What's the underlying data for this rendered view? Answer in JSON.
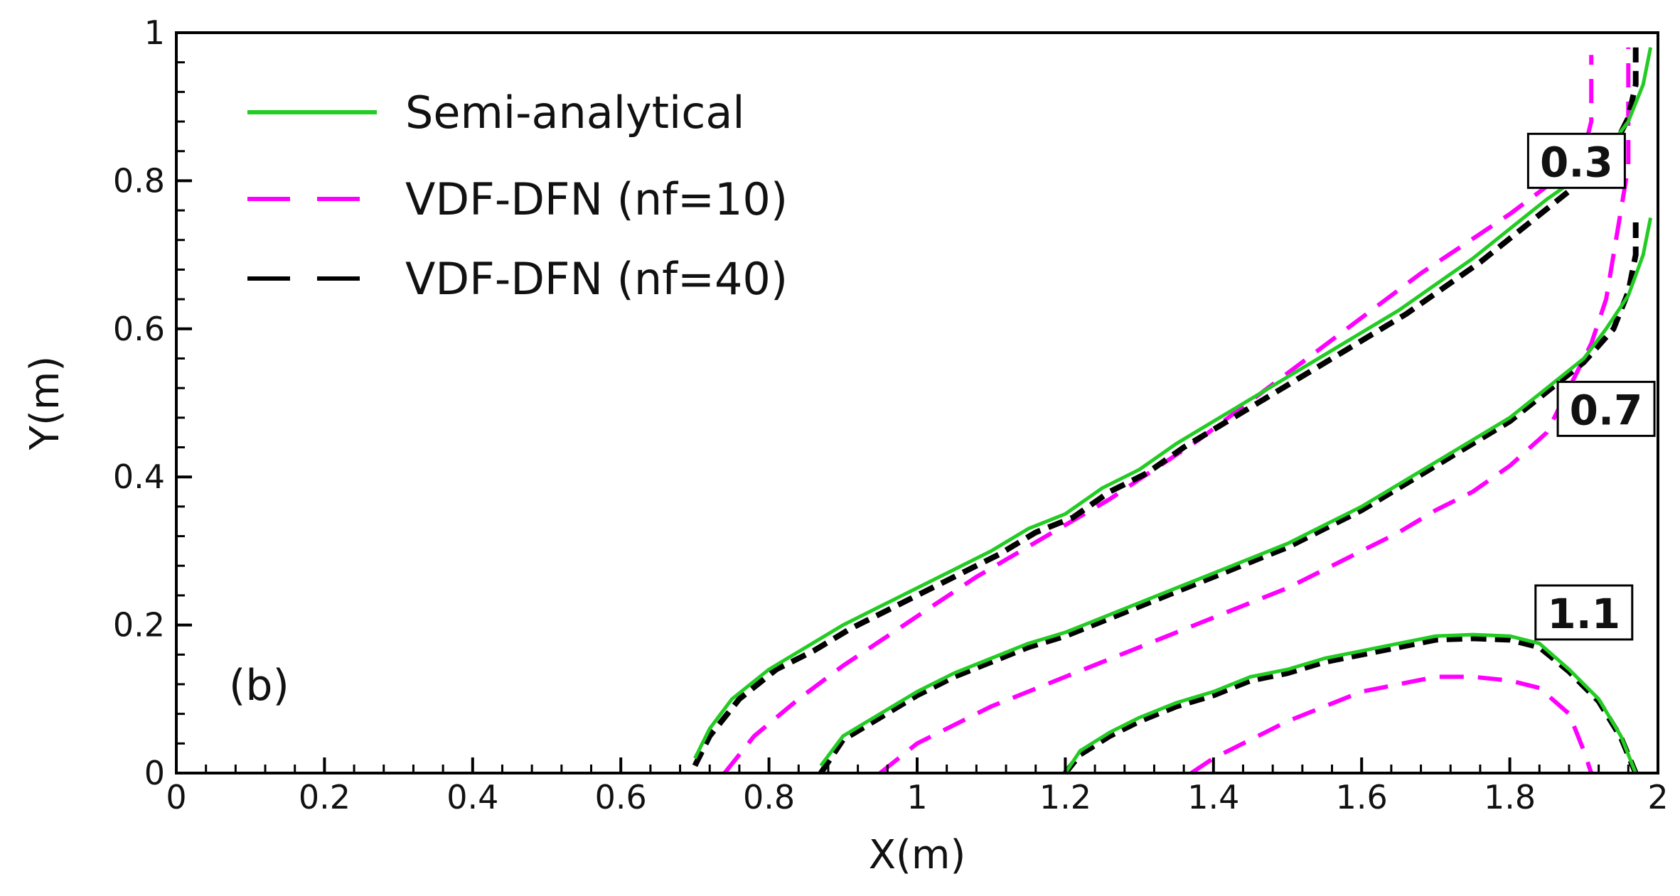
{
  "chart_data": {
    "type": "line",
    "title": "",
    "panel_label": "(b)",
    "xlabel": "X(m)",
    "ylabel": "Y(m)",
    "xlim": [
      0,
      2
    ],
    "ylim": [
      0,
      1
    ],
    "x_ticks": [
      "0",
      "0.2",
      "0.4",
      "0.6",
      "0.8",
      "1",
      "1.2",
      "1.4",
      "1.6",
      "1.8",
      "2"
    ],
    "y_ticks": [
      "0",
      "0.2",
      "0.4",
      "0.6",
      "0.8",
      "1"
    ],
    "grid": false,
    "legend_position": "top-left",
    "legend": [
      {
        "label": "Semi-analytical",
        "color": "#22cc22",
        "dash": "solid"
      },
      {
        "label": "VDF-DFN (nf=10)",
        "color": "#ff00ff",
        "dash": "dashed"
      },
      {
        "label": "VDF-DFN (nf=40)",
        "color": "#000000",
        "dash": "dashed"
      }
    ],
    "curve_labels": [
      {
        "text": "0.3",
        "x": 1.89,
        "y": 0.825
      },
      {
        "text": "0.7",
        "x": 1.93,
        "y": 0.49
      },
      {
        "text": "1.1",
        "x": 1.9,
        "y": 0.215
      }
    ],
    "series": [
      {
        "method": "Semi-analytical",
        "time": "0.3",
        "points": [
          [
            0.7,
            0.02
          ],
          [
            0.72,
            0.06
          ],
          [
            0.75,
            0.1
          ],
          [
            0.8,
            0.14
          ],
          [
            0.85,
            0.17
          ],
          [
            0.9,
            0.2
          ],
          [
            0.95,
            0.225
          ],
          [
            1.0,
            0.25
          ],
          [
            1.05,
            0.275
          ],
          [
            1.1,
            0.3
          ],
          [
            1.15,
            0.33
          ],
          [
            1.2,
            0.35
          ],
          [
            1.25,
            0.385
          ],
          [
            1.3,
            0.41
          ],
          [
            1.35,
            0.445
          ],
          [
            1.4,
            0.475
          ],
          [
            1.45,
            0.505
          ],
          [
            1.5,
            0.535
          ],
          [
            1.55,
            0.565
          ],
          [
            1.6,
            0.595
          ],
          [
            1.65,
            0.625
          ],
          [
            1.7,
            0.66
          ],
          [
            1.75,
            0.695
          ],
          [
            1.8,
            0.735
          ],
          [
            1.85,
            0.775
          ],
          [
            1.9,
            0.81
          ],
          [
            1.93,
            0.84
          ],
          [
            1.96,
            0.88
          ],
          [
            1.98,
            0.93
          ],
          [
            1.99,
            0.98
          ]
        ]
      },
      {
        "method": "VDF-DFN (nf=40)",
        "time": "0.3",
        "points": [
          [
            0.7,
            0.01
          ],
          [
            0.72,
            0.05
          ],
          [
            0.76,
            0.1
          ],
          [
            0.81,
            0.14
          ],
          [
            0.86,
            0.165
          ],
          [
            0.91,
            0.195
          ],
          [
            0.96,
            0.22
          ],
          [
            1.01,
            0.245
          ],
          [
            1.06,
            0.27
          ],
          [
            1.11,
            0.295
          ],
          [
            1.16,
            0.325
          ],
          [
            1.21,
            0.345
          ],
          [
            1.26,
            0.38
          ],
          [
            1.31,
            0.405
          ],
          [
            1.36,
            0.44
          ],
          [
            1.41,
            0.47
          ],
          [
            1.46,
            0.5
          ],
          [
            1.51,
            0.53
          ],
          [
            1.56,
            0.56
          ],
          [
            1.61,
            0.59
          ],
          [
            1.66,
            0.62
          ],
          [
            1.71,
            0.655
          ],
          [
            1.76,
            0.69
          ],
          [
            1.81,
            0.73
          ],
          [
            1.86,
            0.77
          ],
          [
            1.91,
            0.81
          ],
          [
            1.94,
            0.845
          ],
          [
            1.96,
            0.885
          ],
          [
            1.97,
            0.93
          ],
          [
            1.97,
            0.98
          ]
        ]
      },
      {
        "method": "VDF-DFN (nf=10)",
        "time": "0.3",
        "points": [
          [
            0.74,
            0.0
          ],
          [
            0.78,
            0.05
          ],
          [
            0.84,
            0.1
          ],
          [
            0.9,
            0.145
          ],
          [
            0.96,
            0.185
          ],
          [
            1.02,
            0.225
          ],
          [
            1.08,
            0.265
          ],
          [
            1.14,
            0.3
          ],
          [
            1.2,
            0.335
          ],
          [
            1.26,
            0.37
          ],
          [
            1.32,
            0.41
          ],
          [
            1.38,
            0.45
          ],
          [
            1.44,
            0.495
          ],
          [
            1.5,
            0.54
          ],
          [
            1.56,
            0.585
          ],
          [
            1.62,
            0.63
          ],
          [
            1.68,
            0.675
          ],
          [
            1.74,
            0.715
          ],
          [
            1.8,
            0.755
          ],
          [
            1.86,
            0.8
          ],
          [
            1.9,
            0.84
          ],
          [
            1.91,
            0.88
          ],
          [
            1.91,
            0.93
          ],
          [
            1.91,
            0.97
          ]
        ]
      },
      {
        "method": "Semi-analytical",
        "time": "0.7",
        "points": [
          [
            0.87,
            0.01
          ],
          [
            0.9,
            0.05
          ],
          [
            0.95,
            0.08
          ],
          [
            1.0,
            0.11
          ],
          [
            1.05,
            0.135
          ],
          [
            1.1,
            0.155
          ],
          [
            1.15,
            0.175
          ],
          [
            1.2,
            0.19
          ],
          [
            1.25,
            0.21
          ],
          [
            1.3,
            0.23
          ],
          [
            1.35,
            0.25
          ],
          [
            1.4,
            0.27
          ],
          [
            1.45,
            0.29
          ],
          [
            1.5,
            0.31
          ],
          [
            1.55,
            0.335
          ],
          [
            1.6,
            0.36
          ],
          [
            1.65,
            0.39
          ],
          [
            1.7,
            0.42
          ],
          [
            1.75,
            0.45
          ],
          [
            1.8,
            0.48
          ],
          [
            1.85,
            0.52
          ],
          [
            1.9,
            0.56
          ],
          [
            1.93,
            0.6
          ],
          [
            1.96,
            0.645
          ],
          [
            1.98,
            0.7
          ],
          [
            1.99,
            0.75
          ]
        ]
      },
      {
        "method": "VDF-DFN (nf=40)",
        "time": "0.7",
        "points": [
          [
            0.87,
            0.0
          ],
          [
            0.9,
            0.045
          ],
          [
            0.95,
            0.075
          ],
          [
            1.0,
            0.105
          ],
          [
            1.05,
            0.13
          ],
          [
            1.1,
            0.15
          ],
          [
            1.15,
            0.17
          ],
          [
            1.2,
            0.185
          ],
          [
            1.25,
            0.205
          ],
          [
            1.3,
            0.225
          ],
          [
            1.35,
            0.245
          ],
          [
            1.4,
            0.265
          ],
          [
            1.45,
            0.285
          ],
          [
            1.5,
            0.305
          ],
          [
            1.55,
            0.33
          ],
          [
            1.6,
            0.355
          ],
          [
            1.65,
            0.385
          ],
          [
            1.7,
            0.415
          ],
          [
            1.75,
            0.445
          ],
          [
            1.8,
            0.475
          ],
          [
            1.85,
            0.515
          ],
          [
            1.9,
            0.555
          ],
          [
            1.94,
            0.6
          ],
          [
            1.96,
            0.65
          ],
          [
            1.97,
            0.7
          ],
          [
            1.97,
            0.75
          ]
        ]
      },
      {
        "method": "VDF-DFN (nf=10)",
        "time": "0.7",
        "points": [
          [
            0.95,
            0.0
          ],
          [
            1.0,
            0.04
          ],
          [
            1.05,
            0.065
          ],
          [
            1.1,
            0.09
          ],
          [
            1.15,
            0.11
          ],
          [
            1.2,
            0.13
          ],
          [
            1.25,
            0.15
          ],
          [
            1.3,
            0.17
          ],
          [
            1.35,
            0.19
          ],
          [
            1.4,
            0.21
          ],
          [
            1.45,
            0.23
          ],
          [
            1.5,
            0.25
          ],
          [
            1.55,
            0.275
          ],
          [
            1.6,
            0.3
          ],
          [
            1.65,
            0.325
          ],
          [
            1.7,
            0.355
          ],
          [
            1.75,
            0.38
          ],
          [
            1.8,
            0.415
          ],
          [
            1.85,
            0.46
          ],
          [
            1.88,
            0.52
          ],
          [
            1.91,
            0.58
          ],
          [
            1.93,
            0.64
          ],
          [
            1.94,
            0.7
          ],
          [
            1.95,
            0.76
          ],
          [
            1.96,
            0.82
          ],
          [
            1.96,
            0.88
          ],
          [
            1.96,
            0.93
          ],
          [
            1.96,
            0.98
          ]
        ]
      },
      {
        "method": "Semi-analytical",
        "time": "1.1",
        "points": [
          [
            1.2,
            0.0
          ],
          [
            1.22,
            0.03
          ],
          [
            1.26,
            0.055
          ],
          [
            1.3,
            0.075
          ],
          [
            1.35,
            0.095
          ],
          [
            1.4,
            0.11
          ],
          [
            1.45,
            0.13
          ],
          [
            1.5,
            0.14
          ],
          [
            1.55,
            0.155
          ],
          [
            1.6,
            0.165
          ],
          [
            1.65,
            0.175
          ],
          [
            1.7,
            0.185
          ],
          [
            1.75,
            0.187
          ],
          [
            1.8,
            0.185
          ],
          [
            1.84,
            0.175
          ],
          [
            1.88,
            0.14
          ],
          [
            1.92,
            0.1
          ],
          [
            1.95,
            0.05
          ],
          [
            1.97,
            0.0
          ]
        ]
      },
      {
        "method": "VDF-DFN (nf=40)",
        "time": "1.1",
        "points": [
          [
            1.2,
            0.0
          ],
          [
            1.22,
            0.025
          ],
          [
            1.26,
            0.05
          ],
          [
            1.3,
            0.07
          ],
          [
            1.35,
            0.09
          ],
          [
            1.4,
            0.105
          ],
          [
            1.45,
            0.125
          ],
          [
            1.5,
            0.135
          ],
          [
            1.55,
            0.15
          ],
          [
            1.6,
            0.16
          ],
          [
            1.65,
            0.17
          ],
          [
            1.7,
            0.18
          ],
          [
            1.75,
            0.182
          ],
          [
            1.8,
            0.18
          ],
          [
            1.84,
            0.17
          ],
          [
            1.88,
            0.137
          ],
          [
            1.92,
            0.097
          ],
          [
            1.95,
            0.048
          ],
          [
            1.97,
            0.0
          ]
        ]
      },
      {
        "method": "VDF-DFN (nf=10)",
        "time": "1.1",
        "points": [
          [
            1.37,
            0.0
          ],
          [
            1.4,
            0.02
          ],
          [
            1.45,
            0.045
          ],
          [
            1.5,
            0.07
          ],
          [
            1.55,
            0.09
          ],
          [
            1.6,
            0.11
          ],
          [
            1.65,
            0.12
          ],
          [
            1.7,
            0.13
          ],
          [
            1.75,
            0.13
          ],
          [
            1.8,
            0.125
          ],
          [
            1.84,
            0.115
          ],
          [
            1.88,
            0.08
          ],
          [
            1.9,
            0.03
          ],
          [
            1.91,
            0.0
          ]
        ]
      }
    ]
  }
}
